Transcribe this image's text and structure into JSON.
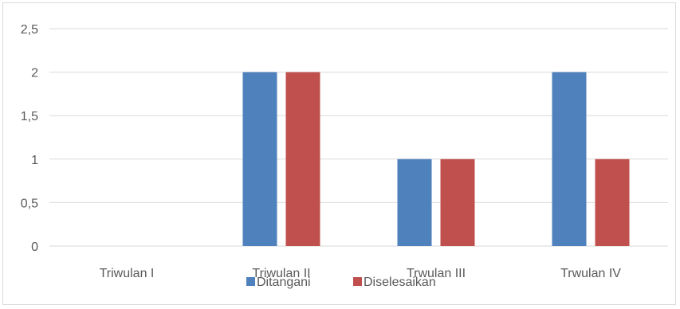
{
  "chart_data": {
    "type": "bar",
    "categories": [
      "Triwulan I",
      "Triwulan II",
      "Trwulan III",
      "Trwulan IV"
    ],
    "series": [
      {
        "name": "Ditangani",
        "values": [
          0,
          2,
          1,
          2
        ],
        "color": "#4f81bd"
      },
      {
        "name": "Diselesaikan",
        "values": [
          0,
          2,
          1,
          1
        ],
        "color": "#c0504d"
      }
    ],
    "y_ticks": [
      "0",
      "0,5",
      "1",
      "1,5",
      "2",
      "2,5"
    ],
    "ylim": [
      0,
      2.5
    ],
    "grid": true,
    "gridline_color": "#d9d9d9",
    "legend_position": "bottom"
  }
}
